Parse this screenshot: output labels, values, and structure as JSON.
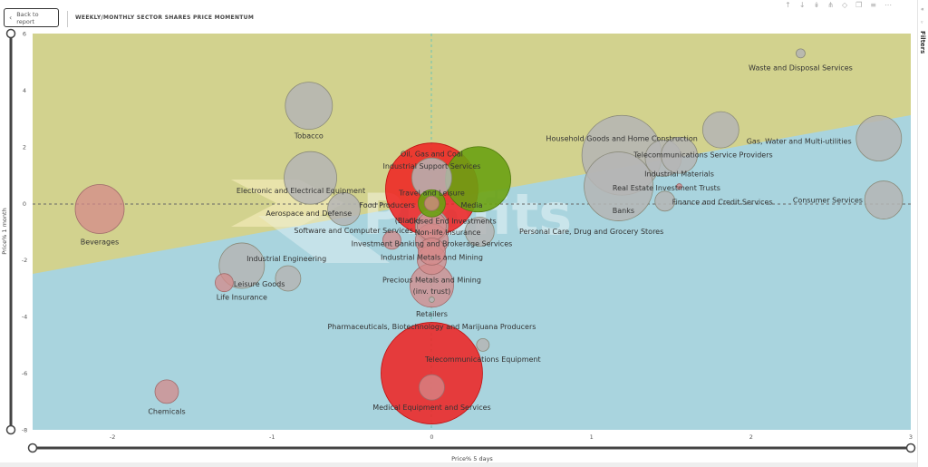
{
  "header": {
    "back_label": "Back to report",
    "title": "WEEKLY/MONTHLY SECTOR SHARES PRICE MOMENTUM",
    "toolbar_icons": [
      "arrow-up-icon",
      "arrow-down-icon",
      "double-arrow-down-icon",
      "expand-hierarchy-icon",
      "pin-icon",
      "copy-icon",
      "filter-icon",
      "more-icon"
    ]
  },
  "filters_pane": {
    "label": "Filters"
  },
  "watermark": "Profits",
  "colors": {
    "upper_region": "#d2d28e",
    "lower_region": "#a9d4de",
    "bubble_grey": "#b5b5b5",
    "bubble_pink": "#d48a8a",
    "bubble_red": "#f02020",
    "bubble_green": "#6aa112"
  },
  "chart_data": {
    "type": "scatter",
    "title": "WEEKLY/MONTHLY SECTOR SHARES PRICE MOMENTUM",
    "xlabel": "Price% 5 days",
    "ylabel": "Price% 1 month",
    "xlim": [
      -2.5,
      3
    ],
    "ylim": [
      -8,
      6
    ],
    "x_ticks": [
      "-2",
      "-1",
      "0",
      "1",
      "2",
      "3"
    ],
    "y_ticks": [
      "6",
      "4",
      "2",
      "0",
      "-2",
      "-4",
      "-6",
      "-8"
    ],
    "reference_lines": {
      "x": 0,
      "y": 0,
      "style": "dashed"
    },
    "grid": false,
    "legend": "none",
    "points": [
      {
        "label": "Waste and Disposal Services",
        "x": 2.31,
        "y": 5.3,
        "r": 5,
        "color": "grey",
        "lx": 2.31,
        "ly": 4.8
      },
      {
        "label": "Tobacco",
        "x": -0.77,
        "y": 3.45,
        "r": 26,
        "color": "grey",
        "lx": -0.77,
        "ly": 2.4
      },
      {
        "label": "Household Goods and Home Construction",
        "x": 1.19,
        "y": 1.7,
        "r": 44,
        "color": "grey",
        "lx": 1.19,
        "ly": 2.3
      },
      {
        "label": "Gas, Water and Multi-utilities",
        "x": 2.8,
        "y": 2.3,
        "r": 25,
        "color": "grey",
        "lx": 2.3,
        "ly": 2.2
      },
      {
        "label": "",
        "x": 1.81,
        "y": 2.6,
        "r": 20,
        "color": "grey",
        "lx": 0,
        "ly": 0
      },
      {
        "label": "Telecommunications Service Providers",
        "x": 1.45,
        "y": 1.6,
        "r": 20,
        "color": "grey",
        "lx": 1.7,
        "ly": 1.72
      },
      {
        "label": "Industrial Materials",
        "x": 1.55,
        "y": 1.7,
        "r": 20,
        "color": "grey",
        "lx": 1.55,
        "ly": 1.05
      },
      {
        "label": "Real Estate Investment Trusts",
        "x": 1.17,
        "y": 0.6,
        "r": 38,
        "color": "grey",
        "lx": 1.47,
        "ly": 0.55
      },
      {
        "label": "Banks",
        "x": 1.17,
        "y": 0.6,
        "r": 0,
        "color": "grey",
        "lx": 1.2,
        "ly": -0.25
      },
      {
        "label": "Finance and Credit Services",
        "x": 1.46,
        "y": 0.08,
        "r": 11,
        "color": "grey",
        "lx": 1.82,
        "ly": 0.05
      },
      {
        "label": "",
        "x": 1.55,
        "y": 0.6,
        "r": 3,
        "color": "pink",
        "lx": 0,
        "ly": 0
      },
      {
        "label": "Consumer Services",
        "x": 2.83,
        "y": 0.12,
        "r": 21,
        "color": "grey",
        "lx": 2.48,
        "ly": 0.12
      },
      {
        "label": "Personal Care, Drug and Grocery Stores",
        "x": 0.3,
        "y": -1.0,
        "r": 16,
        "color": "grey",
        "lx": 1.0,
        "ly": -0.98
      },
      {
        "label": "Oil, Gas and Coal",
        "x": 0.29,
        "y": 0.85,
        "r": 36,
        "color": "green",
        "lx": 0.0,
        "ly": 1.75
      },
      {
        "label": "Industrial Support Services",
        "x": 0.0,
        "y": 0.5,
        "r": 51,
        "color": "red",
        "lx": 0.0,
        "ly": 1.32
      },
      {
        "label": "Electronic and Electrical Equipment",
        "x": -0.76,
        "y": 0.9,
        "r": 29,
        "color": "grey",
        "lx": -0.82,
        "ly": 0.45
      },
      {
        "label": "Travel and Leisure",
        "x": 0.0,
        "y": 0.9,
        "r": 22,
        "color": "grey",
        "lx": 0.0,
        "ly": 0.38
      },
      {
        "label": "Food Producers",
        "x": 0.0,
        "y": 0.0,
        "r": 15,
        "color": "green",
        "lx": -0.28,
        "ly": -0.05
      },
      {
        "label": "Media",
        "x": 0.0,
        "y": 0.0,
        "r": 8,
        "color": "pink",
        "lx": 0.25,
        "ly": -0.05
      },
      {
        "label": "Aerospace and Defense",
        "x": -0.55,
        "y": -0.2,
        "r": 18,
        "color": "grey",
        "lx": -0.77,
        "ly": -0.35
      },
      {
        "label": "(Blank)",
        "x": 0.0,
        "y": -0.8,
        "r": 16,
        "color": "pink",
        "lx": -0.15,
        "ly": -0.6
      },
      {
        "label": "Closed End Investments",
        "x": 0.0,
        "y": -0.8,
        "r": 18,
        "color": "grey",
        "lx": 0.13,
        "ly": -0.62
      },
      {
        "label": "Software and Computer Services",
        "x": -0.25,
        "y": -1.3,
        "r": 10,
        "color": "pink",
        "lx": -0.49,
        "ly": -0.95
      },
      {
        "label": "Non-life Insurance",
        "x": 0.0,
        "y": -1.3,
        "r": 18,
        "color": "pink",
        "lx": 0.1,
        "ly": -1.02
      },
      {
        "label": "Investment Banking and Brokerage Services",
        "x": 0.0,
        "y": -1.7,
        "r": 15,
        "color": "pink",
        "lx": 0.0,
        "ly": -1.42
      },
      {
        "label": "Industrial Metals and Mining",
        "x": 0.0,
        "y": -2.0,
        "r": 16,
        "color": "pink",
        "lx": 0.0,
        "ly": -1.9
      },
      {
        "label": "Precious Metals and Mining",
        "x": 0.0,
        "y": -2.9,
        "r": 24,
        "color": "pink",
        "lx": 0.0,
        "ly": -2.7
      },
      {
        "label": "(inv. trust)",
        "x": 0.0,
        "y": -3.4,
        "r": 3,
        "color": "grey",
        "lx": 0.0,
        "ly": -3.1
      },
      {
        "label": "Retailers",
        "x": 0.0,
        "y": -3.4,
        "r": 0,
        "color": "grey",
        "lx": 0.0,
        "ly": -3.9
      },
      {
        "label": "Pharmaceuticals, Biotechnology and Marijuana Producers",
        "x": 0.0,
        "y": -3.4,
        "r": 0,
        "color": "grey",
        "lx": 0.0,
        "ly": -4.35
      },
      {
        "label": "Telecommunications Equipment",
        "x": 0.32,
        "y": -5.0,
        "r": 7,
        "color": "grey",
        "lx": 0.32,
        "ly": -5.5
      },
      {
        "label": "",
        "x": 0.0,
        "y": -6.0,
        "r": 56,
        "color": "red",
        "lx": 0,
        "ly": 0
      },
      {
        "label": "Medical Equipment and Services",
        "x": 0.0,
        "y": -6.5,
        "r": 14,
        "color": "pink",
        "lx": 0.0,
        "ly": -7.2
      },
      {
        "label": "Beverages",
        "x": -2.08,
        "y": -0.2,
        "r": 27,
        "color": "pink",
        "lx": -2.08,
        "ly": -1.35
      },
      {
        "label": "Industrial Engineering",
        "x": -1.19,
        "y": -2.2,
        "r": 25,
        "color": "grey",
        "lx": -0.91,
        "ly": -1.95
      },
      {
        "label": "",
        "x": -0.9,
        "y": -2.65,
        "r": 14,
        "color": "grey",
        "lx": 0,
        "ly": 0
      },
      {
        "label": "Leisure Goods",
        "x": -1.3,
        "y": -2.8,
        "r": 10,
        "color": "pink",
        "lx": -1.08,
        "ly": -2.85
      },
      {
        "label": "Life Insurance",
        "x": -1.3,
        "y": -2.8,
        "r": 0,
        "color": "pink",
        "lx": -1.19,
        "ly": -3.3
      },
      {
        "label": "Chemicals",
        "x": -1.66,
        "y": -6.65,
        "r": 13,
        "color": "pink",
        "lx": -1.66,
        "ly": -7.35
      }
    ]
  }
}
